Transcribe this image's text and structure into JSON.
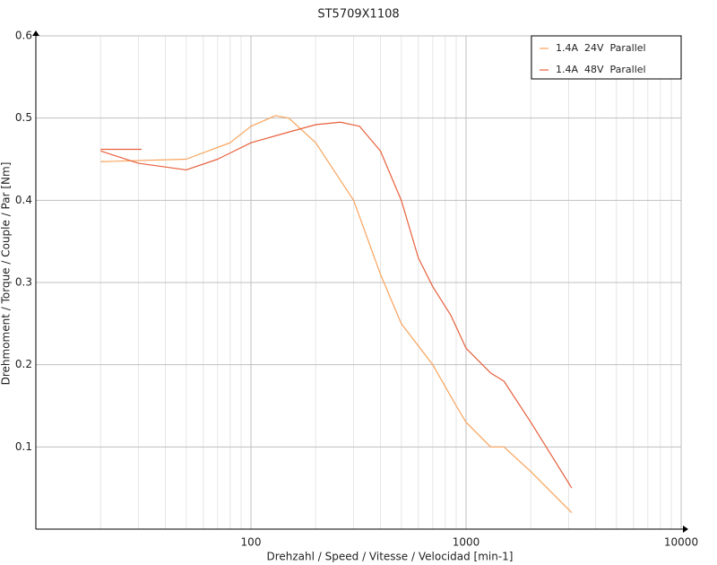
{
  "chart_data": {
    "type": "line",
    "title": "ST5709X1108",
    "x_label": "Drehzahl / Speed / Vitesse / Velocidad [min-1]",
    "y_label": "Drehmoment / Torque / Couple / Par [Nm]",
    "x_log": true,
    "grid": true,
    "legend_position": "upper right",
    "xlim": [
      10,
      10000
    ],
    "xticks": [
      100,
      1000,
      10000
    ],
    "ylim": [
      0,
      0.6
    ],
    "yticks": [
      0.1,
      0.2,
      0.3,
      0.4,
      0.5,
      0.6
    ],
    "series": [
      {
        "name": "1.4A  24V  Parallel",
        "color": "#f7a35c",
        "x": [
          20,
          50,
          80,
          100,
          130,
          150,
          200,
          300,
          400,
          500,
          700,
          900,
          1000,
          1300,
          1500,
          2000,
          3100
        ],
        "values": [
          0.447,
          0.45,
          0.47,
          0.49,
          0.503,
          0.5,
          0.47,
          0.4,
          0.31,
          0.25,
          0.2,
          0.15,
          0.13,
          0.1,
          0.1,
          0.07,
          0.02
        ]
      },
      {
        "name": "1.4A  48V  Parallel",
        "color": "#e8603c",
        "x": [
          20,
          31,
          25,
          20,
          30,
          50,
          70,
          100,
          150,
          200,
          260,
          320,
          400,
          500,
          600,
          700,
          850,
          1000,
          1300,
          1500,
          2000,
          3100
        ],
        "values": [
          0.462,
          0.462,
          null,
          0.46,
          0.445,
          0.437,
          0.45,
          0.47,
          0.483,
          0.492,
          0.495,
          0.49,
          0.46,
          0.4,
          0.33,
          0.295,
          0.26,
          0.22,
          0.19,
          0.18,
          0.13,
          0.05
        ]
      }
    ]
  }
}
